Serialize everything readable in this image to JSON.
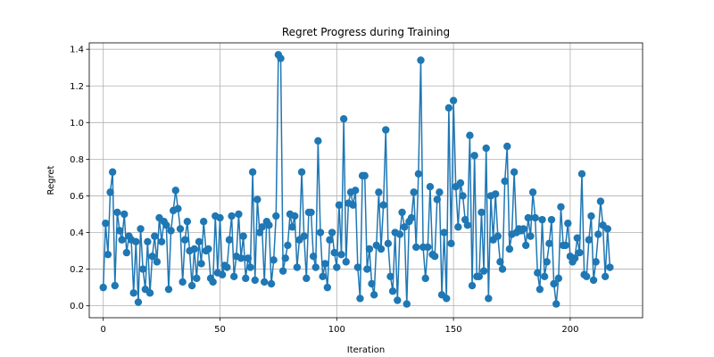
{
  "chart_data": {
    "type": "line",
    "title": "Regret Progress during Training",
    "xlabel": "Iteration",
    "ylabel": "Regret",
    "xlim": [
      -6,
      231
    ],
    "ylim": [
      -0.065,
      1.435
    ],
    "xticks": [
      0,
      50,
      100,
      150,
      200
    ],
    "yticks": [
      0.0,
      0.2,
      0.4,
      0.6,
      0.8,
      1.0,
      1.2,
      1.4
    ],
    "ytick_labels": [
      "0.0",
      "0.2",
      "0.4",
      "0.6",
      "0.8",
      "1.0",
      "1.2",
      "1.4"
    ],
    "grid": true,
    "legend": false,
    "marker": "circle",
    "series": [
      {
        "color": "#1f77b4",
        "x_start": 0,
        "x_step": 1,
        "values": [
          0.1,
          0.45,
          0.28,
          0.62,
          0.73,
          0.11,
          0.51,
          0.41,
          0.36,
          0.5,
          0.29,
          0.38,
          0.36,
          0.07,
          0.35,
          0.02,
          0.42,
          0.2,
          0.09,
          0.35,
          0.07,
          0.27,
          0.38,
          0.24,
          0.48,
          0.35,
          0.46,
          0.44,
          0.09,
          0.41,
          0.52,
          0.63,
          0.53,
          0.42,
          0.13,
          0.36,
          0.46,
          0.3,
          0.11,
          0.31,
          0.15,
          0.35,
          0.23,
          0.46,
          0.3,
          0.31,
          0.15,
          0.13,
          0.49,
          0.18,
          0.48,
          0.17,
          0.22,
          0.21,
          0.36,
          0.49,
          0.16,
          0.27,
          0.5,
          0.26,
          0.38,
          0.15,
          0.26,
          0.21,
          0.73,
          0.14,
          0.58,
          0.4,
          0.43,
          0.13,
          0.46,
          0.44,
          0.12,
          0.25,
          0.49,
          1.37,
          1.35,
          0.19,
          0.26,
          0.33,
          0.5,
          0.43,
          0.49,
          0.21,
          0.36,
          0.73,
          0.38,
          0.15,
          0.51,
          0.51,
          0.27,
          0.21,
          0.9,
          0.4,
          0.16,
          0.23,
          0.1,
          0.36,
          0.4,
          0.29,
          0.21,
          0.55,
          0.28,
          1.02,
          0.24,
          0.56,
          0.62,
          0.55,
          0.63,
          0.21,
          0.04,
          0.71,
          0.71,
          0.2,
          0.31,
          0.12,
          0.06,
          0.33,
          0.62,
          0.31,
          0.55,
          0.96,
          0.34,
          0.16,
          0.08,
          0.4,
          0.03,
          0.39,
          0.51,
          0.43,
          0.01,
          0.46,
          0.48,
          0.62,
          0.32,
          0.72,
          1.34,
          0.32,
          0.15,
          0.32,
          0.65,
          0.28,
          0.27,
          0.58,
          0.62,
          0.06,
          0.4,
          0.04,
          1.08,
          0.34,
          1.12,
          0.65,
          0.43,
          0.67,
          0.6,
          0.47,
          0.44,
          0.93,
          0.11,
          0.82,
          0.16,
          0.16,
          0.51,
          0.19,
          0.86,
          0.04,
          0.6,
          0.36,
          0.61,
          0.38,
          0.24,
          0.2,
          0.68,
          0.87,
          0.31,
          0.39,
          0.73,
          0.4,
          0.42,
          0.41,
          0.42,
          0.33,
          0.48,
          0.38,
          0.62,
          0.48,
          0.18,
          0.09,
          0.47,
          0.16,
          0.24,
          0.34,
          0.47,
          0.12,
          0.01,
          0.15,
          0.54,
          0.33,
          0.33,
          0.45,
          0.27,
          0.24,
          0.26,
          0.37,
          0.29,
          0.72,
          0.17,
          0.16,
          0.36,
          0.49,
          0.14,
          0.24,
          0.39,
          0.57,
          0.44,
          0.16,
          0.42,
          0.21
        ]
      }
    ]
  }
}
